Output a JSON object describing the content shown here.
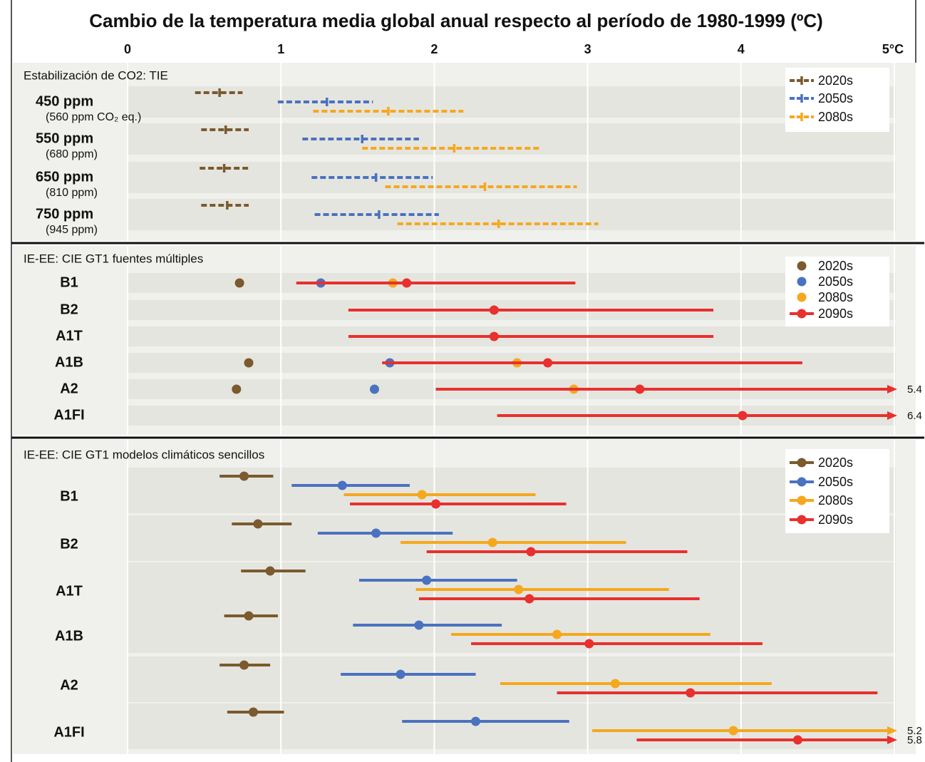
{
  "chart_data": {
    "type": "range",
    "title": "Cambio de la temperatura media global anual respecto al período de 1980-1999 (ºC)",
    "xlim": [
      0,
      5
    ],
    "xticks": [
      0,
      1,
      2,
      3,
      4,
      {
        "value": 5,
        "label": "5°C"
      }
    ],
    "grid": true,
    "panels": [
      {
        "title": "Estabilización de CO2: TIE",
        "dashed": true,
        "rows": [
          {
            "label": "450 ppm",
            "sublabel": "(560 ppm CO₂ eq.)"
          },
          {
            "label": "550 ppm",
            "sublabel": "(680 ppm)"
          },
          {
            "label": "650 ppm",
            "sublabel": "(810 ppm)"
          },
          {
            "label": "750 ppm",
            "sublabel": "(945 ppm)"
          }
        ],
        "series": [
          {
            "name": "2020s",
            "color": "#7a5a2e",
            "values": [
              0.6,
              0.64,
              0.63,
              0.65
            ],
            "low": [
              0.44,
              0.48,
              0.47,
              0.48
            ],
            "high": [
              0.75,
              0.79,
              0.8,
              0.79
            ]
          },
          {
            "name": "2050s",
            "color": "#4a72c0",
            "values": [
              1.3,
              1.53,
              1.62,
              1.64
            ],
            "low": [
              0.98,
              1.14,
              1.2,
              1.22
            ],
            "high": [
              1.6,
              1.9,
              1.99,
              2.03
            ]
          },
          {
            "name": "2080s",
            "color": "#f5a81e",
            "values": [
              1.7,
              2.13,
              2.33,
              2.42
            ],
            "low": [
              1.21,
              1.53,
              1.68,
              1.76
            ],
            "high": [
              2.19,
              2.7,
              2.93,
              3.07
            ]
          }
        ]
      },
      {
        "title": "IE-EE: CIE GT1 fuentes múltiples",
        "dashed": false,
        "rows": [
          {
            "label": "B1"
          },
          {
            "label": "B2"
          },
          {
            "label": "A1T"
          },
          {
            "label": "A1B"
          },
          {
            "label": "A2"
          },
          {
            "label": "A1FI"
          }
        ],
        "series": [
          {
            "name": "2020s",
            "color": "#7a5a2e",
            "values": [
              0.73,
              null,
              null,
              0.79,
              0.71,
              null
            ]
          },
          {
            "name": "2050s",
            "color": "#4a72c0",
            "values": [
              1.26,
              null,
              null,
              1.71,
              1.61,
              null
            ]
          },
          {
            "name": "2080s",
            "color": "#f5a81e",
            "values": [
              1.73,
              null,
              null,
              2.54,
              2.91,
              null
            ]
          },
          {
            "name": "2090s",
            "color": "#e8302e",
            "values": [
              1.82,
              2.39,
              2.39,
              2.74,
              3.34,
              4.01
            ],
            "low": [
              1.1,
              1.44,
              1.44,
              1.66,
              2.01,
              2.41
            ],
            "high": [
              2.92,
              3.82,
              3.82,
              4.4,
              5.4,
              6.4
            ]
          }
        ]
      },
      {
        "title": "IE-EE: CIE GT1 modelos climáticos sencillos",
        "dashed": false,
        "rows": [
          {
            "label": "B1"
          },
          {
            "label": "B2"
          },
          {
            "label": "A1T"
          },
          {
            "label": "A1B"
          },
          {
            "label": "A2"
          },
          {
            "label": "A1FI"
          }
        ],
        "series": [
          {
            "name": "2020s",
            "color": "#7a5a2e",
            "values": [
              0.76,
              0.85,
              0.93,
              0.79,
              0.76,
              0.82
            ],
            "low": [
              0.6,
              0.68,
              0.74,
              0.63,
              0.6,
              0.65
            ],
            "high": [
              0.95,
              1.07,
              1.16,
              0.98,
              0.93,
              1.02
            ]
          },
          {
            "name": "2050s",
            "color": "#4a72c0",
            "values": [
              1.4,
              1.62,
              1.95,
              1.9,
              1.78,
              2.27
            ],
            "low": [
              1.07,
              1.24,
              1.51,
              1.47,
              1.39,
              1.79
            ],
            "high": [
              1.84,
              2.12,
              2.54,
              2.44,
              2.27,
              2.88
            ]
          },
          {
            "name": "2080s",
            "color": "#f5a81e",
            "values": [
              1.92,
              2.38,
              2.55,
              2.8,
              3.18,
              3.95
            ],
            "low": [
              1.41,
              1.78,
              1.88,
              2.11,
              2.43,
              3.03
            ],
            "high": [
              2.66,
              3.25,
              3.53,
              3.8,
              4.2,
              5.2
            ]
          },
          {
            "name": "2090s",
            "color": "#e8302e",
            "values": [
              2.01,
              2.63,
              2.62,
              3.01,
              3.67,
              4.37
            ],
            "low": [
              1.45,
              1.95,
              1.9,
              2.24,
              2.8,
              3.32
            ],
            "high": [
              2.86,
              3.65,
              3.73,
              4.14,
              4.89,
              5.8
            ]
          }
        ]
      }
    ]
  }
}
